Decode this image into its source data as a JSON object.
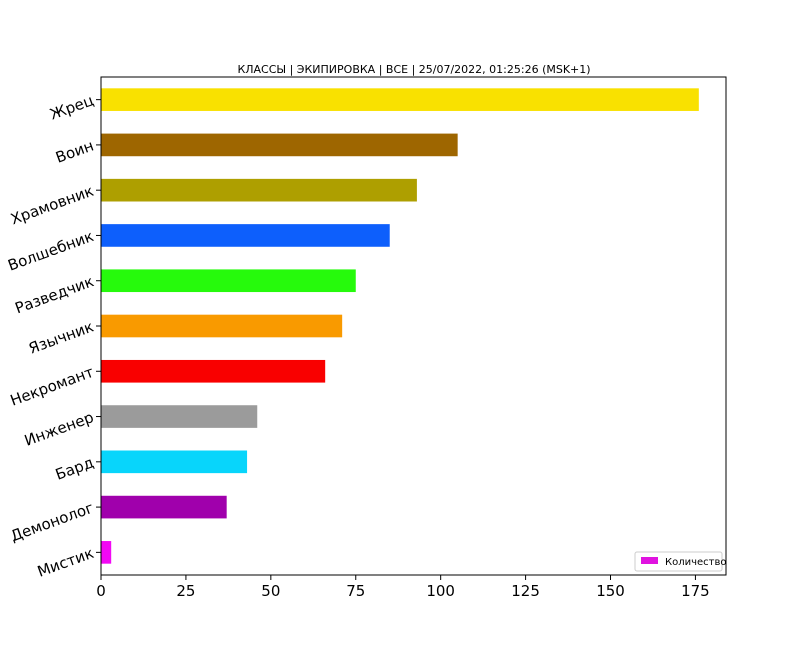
{
  "chart_data": {
    "type": "bar",
    "orientation": "horizontal",
    "title": "КЛАССЫ | ЭКИПИРОВКА | ВСЕ | 25/07/2022, 01:25:26 (MSK+1)",
    "xlabel": "",
    "ylabel": "",
    "xlim": [
      0,
      184
    ],
    "xticks": [
      0,
      25,
      50,
      75,
      100,
      125,
      150,
      175
    ],
    "grid": false,
    "legend_position": "lower-right",
    "categories": [
      "Жрец",
      "Воин",
      "Храмовник",
      "Волшебник",
      "Разведчик",
      "Язычник",
      "Некромант",
      "Инженер",
      "Бард",
      "Демонолог",
      "Мистик"
    ],
    "series": [
      {
        "name": "Количество",
        "values": [
          176,
          105,
          93,
          85,
          75,
          71,
          66,
          46,
          43,
          37,
          3
        ],
        "colors": [
          "#f9e100",
          "#9e6600",
          "#ae9f00",
          "#0d5ffc",
          "#26fa0c",
          "#f99a00",
          "#f90000",
          "#9b9b9b",
          "#08d5fb",
          "#a000ac",
          "#f208f4"
        ]
      }
    ],
    "legend_swatch_color": "#e013e0"
  }
}
